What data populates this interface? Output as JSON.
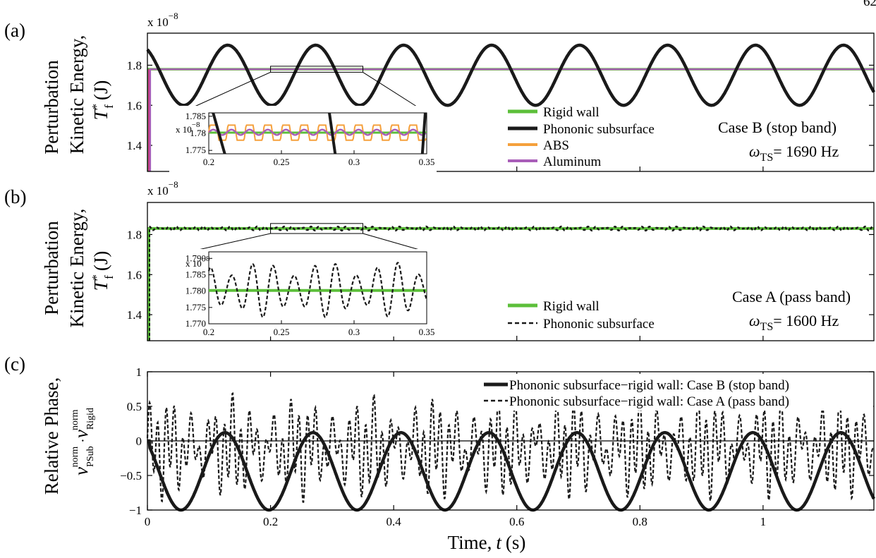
{
  "chart_data": [
    {
      "panel_label": "(a)",
      "type": "line",
      "multiplier": "x 10",
      "multiplier_exp": "−8",
      "ylabel_line1": "Perturbation",
      "ylabel_line2": "Kinetic Energy,",
      "ylabel_line3_main": "T",
      "ylabel_line3_sup": "*",
      "ylabel_line3_sub": "f",
      "ylabel_line3_unit": "(J)",
      "xlim": [
        0,
        1.18
      ],
      "ylim": [
        1.27,
        1.96
      ],
      "yticks": [
        "1.4",
        "1.6",
        "1.8"
      ],
      "case_label": "Case B (stop band)",
      "omega_label": "ω",
      "omega_sub": "TS",
      "omega_value": "= 1690 Hz",
      "series": [
        {
          "name": "Rigid wall",
          "color": "#5cbf3a",
          "style": "solid",
          "level": 1.78
        },
        {
          "name": "Phononic subsurface",
          "color": "#1a1a1a",
          "style": "solid",
          "mean": 1.75,
          "amplitude": 0.15,
          "period": 0.1429,
          "phase_deg": 0
        },
        {
          "name": "ABS",
          "color": "#f5a03c",
          "style": "solid",
          "level": 1.78
        },
        {
          "name": "Aluminum",
          "color": "#a85db8",
          "style": "solid",
          "level": 1.78
        }
      ],
      "inset": {
        "multiplier": "x 10",
        "multiplier_exp": "−8",
        "xlim": [
          0.2,
          0.35
        ],
        "ylim": [
          1.774,
          1.786
        ],
        "xticks": [
          "0.2",
          "0.25",
          "0.3",
          "0.35"
        ],
        "yticks": [
          "1.775",
          "1.78",
          "1.785"
        ]
      }
    },
    {
      "panel_label": "(b)",
      "type": "line",
      "multiplier": "x 10",
      "multiplier_exp": "−8",
      "ylabel_line1": "Perturbation",
      "ylabel_line2": "Kinetic Energy,",
      "ylabel_line3_main": "T",
      "ylabel_line3_sup": "*",
      "ylabel_line3_sub": "f",
      "ylabel_line3_unit": "(J)",
      "xlim": [
        0,
        1.18
      ],
      "ylim": [
        1.27,
        1.96
      ],
      "yticks": [
        "1.4",
        "1.6",
        "1.8"
      ],
      "case_label": "Case A (pass band)",
      "omega_label": "ω",
      "omega_sub": "TS",
      "omega_value": "= 1600 Hz",
      "series": [
        {
          "name": "Rigid wall",
          "color": "#5cbf3a",
          "style": "solid",
          "level": 1.83
        },
        {
          "name": "Phononic subsurface",
          "color": "#1a1a1a",
          "style": "dashed",
          "mean": 1.83,
          "amplitude": 0.01
        }
      ],
      "inset": {
        "multiplier": "x 10",
        "multiplier_exp": "−8",
        "xlim": [
          0.2,
          0.35
        ],
        "ylim": [
          1.77,
          1.792
        ],
        "xticks": [
          "0.2",
          "0.25",
          "0.3",
          "0.35"
        ],
        "yticks": [
          "1.770",
          "1.775",
          "1.780",
          "1.785",
          "1.790"
        ],
        "rigid_level": 1.7802,
        "phononic_mean": 1.7805,
        "phononic_amplitude": 0.0085
      }
    },
    {
      "panel_label": "(c)",
      "type": "line",
      "ylabel_line1": "Relative Phase,",
      "xlabel": "Time,",
      "xlabel_var": "t",
      "xlabel_unit": "(s)",
      "xlim": [
        0,
        1.18
      ],
      "ylim": [
        -1,
        1
      ],
      "xticks": [
        "0",
        "0.2",
        "0.4",
        "0.6",
        "0.8",
        "1"
      ],
      "yticks": [
        "−1",
        "−0.5",
        "0",
        "0.5",
        "1"
      ],
      "series": [
        {
          "name": "Phononic subsurface−rigid wall: Case B (stop band)",
          "color": "#1a1a1a",
          "style": "solid",
          "mean": -0.44,
          "amplitude": 0.56,
          "period": 0.1429,
          "first_peak": 0.126
        },
        {
          "name": "Phononic subsurface−rigid wall: Case A (pass band)",
          "color": "#1a1a1a",
          "style": "dashed",
          "amplitude_range": [
            -1,
            0.9
          ]
        }
      ]
    }
  ],
  "corner_page_number": "62"
}
